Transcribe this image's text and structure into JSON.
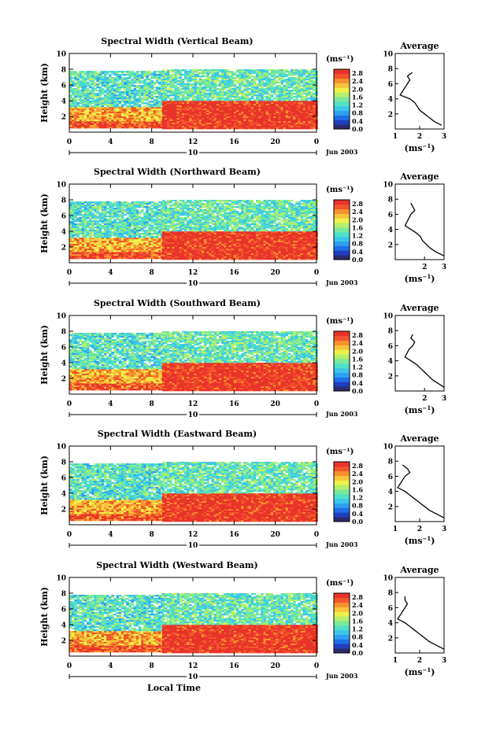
{
  "figure": {
    "xlabel": "Local Time",
    "date_label": "Jun 2003",
    "day_marker": "10",
    "units_label": "(ms⁻¹)",
    "units_base": "(ms",
    "units_exp": "−1",
    "avg_xlabel_base": "(ms",
    "avg_xlabel_exp": "−1",
    "avg_xlabel_close": ")"
  },
  "colorscale": {
    "colors": [
      "#2b2b6b",
      "#1f3fbf",
      "#1e6fe6",
      "#2ea0f0",
      "#3cc6ea",
      "#4fe0c8",
      "#7ae89a",
      "#b5f06a",
      "#eef04a",
      "#f7c43a",
      "#f7902e",
      "#f2562a",
      "#e8332a"
    ],
    "ticks": [
      "0.0",
      "0.4",
      "0.8",
      "1.2",
      "1.6",
      "2.0",
      "2.4",
      "2.8"
    ],
    "range": [
      0.0,
      3.0
    ]
  },
  "chart_data": [
    {
      "type": "heatmap",
      "title": "Spectral Width (Vertical Beam)",
      "ylabel": "Height (km)",
      "xlim": [
        0,
        24
      ],
      "ylim": [
        0,
        10
      ],
      "xticks": [
        "0",
        "4",
        "8",
        "12",
        "16",
        "20",
        "0"
      ],
      "yticks": [
        "2",
        "4",
        "6",
        "8",
        "10"
      ],
      "regimes": [
        {
          "x": [
            0,
            9.0
          ],
          "y": [
            0.5,
            1.5
          ],
          "value": 2.7
        },
        {
          "x": [
            0,
            9.0
          ],
          "y": [
            1.5,
            3.2
          ],
          "value": 2.3
        },
        {
          "x": [
            0,
            9.0
          ],
          "y": [
            3.2,
            7.8
          ],
          "value": 1.3
        },
        {
          "x": [
            9.0,
            24
          ],
          "y": [
            0.5,
            4.0
          ],
          "value": 2.9
        },
        {
          "x": [
            9.0,
            24
          ],
          "y": [
            4.0,
            8.0
          ],
          "value": 1.4
        }
      ],
      "average": {
        "title": "Average",
        "xlim": [
          1,
          3
        ],
        "xticks": [
          "1",
          "2",
          "3"
        ],
        "ylim": [
          0,
          10
        ],
        "yticks": [
          "2",
          "4",
          "6",
          "8",
          "10"
        ],
        "height": [
          0.5,
          1.0,
          1.5,
          2.0,
          2.5,
          3.0,
          3.5,
          4.0,
          4.5,
          5.0,
          5.5,
          6.0,
          6.5,
          7.0,
          7.5
        ],
        "value": [
          2.9,
          2.6,
          2.4,
          2.2,
          2.0,
          1.9,
          1.8,
          1.6,
          1.2,
          1.3,
          1.4,
          1.5,
          1.6,
          1.5,
          1.7
        ]
      }
    },
    {
      "type": "heatmap",
      "title": "Spectral Width (Northward Beam)",
      "ylabel": "Height (km)",
      "xlim": [
        0,
        24
      ],
      "ylim": [
        0,
        10
      ],
      "xticks": [
        "0",
        "4",
        "8",
        "12",
        "16",
        "20",
        "0"
      ],
      "yticks": [
        "2",
        "4",
        "6",
        "8",
        "10"
      ],
      "regimes": [
        {
          "x": [
            0,
            9.0
          ],
          "y": [
            0.5,
            1.5
          ],
          "value": 2.7
        },
        {
          "x": [
            0,
            9.0
          ],
          "y": [
            1.5,
            3.2
          ],
          "value": 2.3
        },
        {
          "x": [
            0,
            9.0
          ],
          "y": [
            3.2,
            7.8
          ],
          "value": 1.3
        },
        {
          "x": [
            9.0,
            24
          ],
          "y": [
            0.5,
            4.0
          ],
          "value": 2.9
        },
        {
          "x": [
            9.0,
            24
          ],
          "y": [
            4.0,
            8.0
          ],
          "value": 1.4
        }
      ],
      "average": {
        "title": "Average",
        "xlim": [
          0.5,
          3
        ],
        "xticks": [
          "2",
          "3"
        ],
        "ylim": [
          0,
          10
        ],
        "yticks": [
          "2",
          "4",
          "6",
          "8",
          "10"
        ],
        "height": [
          0.5,
          1.0,
          1.5,
          2.0,
          2.5,
          3.0,
          3.5,
          4.0,
          4.5,
          5.0,
          5.5,
          6.0,
          6.5,
          7.0,
          7.5
        ],
        "value": [
          3.0,
          2.6,
          2.3,
          2.1,
          1.9,
          1.8,
          1.6,
          1.3,
          1.0,
          1.1,
          1.2,
          1.3,
          1.5,
          1.4,
          1.3
        ]
      }
    },
    {
      "type": "heatmap",
      "title": "Spectral Width (Southward Beam)",
      "ylabel": "Height (km)",
      "xlim": [
        0,
        24
      ],
      "ylim": [
        0,
        10
      ],
      "xticks": [
        "0",
        "4",
        "8",
        "12",
        "16",
        "20",
        "0"
      ],
      "yticks": [
        "2",
        "4",
        "6",
        "8",
        "10"
      ],
      "regimes": [
        {
          "x": [
            0,
            9.0
          ],
          "y": [
            0.5,
            1.5
          ],
          "value": 2.7
        },
        {
          "x": [
            0,
            9.0
          ],
          "y": [
            1.5,
            3.2
          ],
          "value": 2.3
        },
        {
          "x": [
            0,
            9.0
          ],
          "y": [
            3.2,
            7.8
          ],
          "value": 1.3
        },
        {
          "x": [
            9.0,
            24
          ],
          "y": [
            0.5,
            4.0
          ],
          "value": 2.9
        },
        {
          "x": [
            9.0,
            24
          ],
          "y": [
            4.0,
            8.0
          ],
          "value": 1.4
        }
      ],
      "average": {
        "title": "Average",
        "xlim": [
          0.5,
          3
        ],
        "xticks": [
          "2",
          "3"
        ],
        "ylim": [
          0,
          10
        ],
        "yticks": [
          "2",
          "4",
          "6",
          "8",
          "10"
        ],
        "height": [
          0.5,
          1.0,
          1.5,
          2.0,
          2.5,
          3.0,
          3.5,
          4.0,
          4.5,
          5.0,
          5.5,
          6.0,
          6.5,
          7.0,
          7.5
        ],
        "value": [
          3.0,
          2.7,
          2.4,
          2.2,
          2.0,
          1.8,
          1.6,
          1.3,
          1.0,
          1.1,
          1.2,
          1.4,
          1.5,
          1.3,
          1.4
        ]
      }
    },
    {
      "type": "heatmap",
      "title": "Spectral Width (Eastward Beam)",
      "ylabel": "Height (km)",
      "xlim": [
        0,
        24
      ],
      "ylim": [
        0,
        10
      ],
      "xticks": [
        "0",
        "4",
        "8",
        "12",
        "16",
        "20",
        "0"
      ],
      "yticks": [
        "2",
        "4",
        "6",
        "8",
        "10"
      ],
      "regimes": [
        {
          "x": [
            0,
            9.0
          ],
          "y": [
            0.5,
            1.5
          ],
          "value": 2.7
        },
        {
          "x": [
            0,
            9.0
          ],
          "y": [
            1.5,
            3.2
          ],
          "value": 2.3
        },
        {
          "x": [
            0,
            9.0
          ],
          "y": [
            3.2,
            7.8
          ],
          "value": 1.3
        },
        {
          "x": [
            9.0,
            24
          ],
          "y": [
            0.5,
            4.0
          ],
          "value": 2.9
        },
        {
          "x": [
            9.0,
            24
          ],
          "y": [
            4.0,
            8.0
          ],
          "value": 1.4
        }
      ],
      "average": {
        "title": "Average",
        "xlim": [
          1,
          3
        ],
        "xticks": [
          "1",
          "2",
          "3"
        ],
        "ylim": [
          0,
          10
        ],
        "yticks": [
          "2",
          "4",
          "6",
          "8",
          "10"
        ],
        "height": [
          0.5,
          1.0,
          1.5,
          2.0,
          2.5,
          3.0,
          3.5,
          4.0,
          4.5,
          5.0,
          5.5,
          6.0,
          6.5,
          7.0,
          7.5
        ],
        "value": [
          3.0,
          2.7,
          2.4,
          2.2,
          2.0,
          1.8,
          1.6,
          1.4,
          1.1,
          1.2,
          1.3,
          1.4,
          1.6,
          1.5,
          1.3
        ]
      }
    },
    {
      "type": "heatmap",
      "title": "Spectral Width (Westward Beam)",
      "ylabel": "Height (km)",
      "xlim": [
        0,
        24
      ],
      "ylim": [
        0,
        10
      ],
      "xticks": [
        "0",
        "4",
        "8",
        "12",
        "16",
        "20",
        "0"
      ],
      "yticks": [
        "2",
        "4",
        "6",
        "8",
        "10"
      ],
      "regimes": [
        {
          "x": [
            0,
            9.0
          ],
          "y": [
            0.5,
            1.5
          ],
          "value": 2.7
        },
        {
          "x": [
            0,
            9.0
          ],
          "y": [
            1.5,
            3.2
          ],
          "value": 2.3
        },
        {
          "x": [
            0,
            9.0
          ],
          "y": [
            3.2,
            7.8
          ],
          "value": 1.3
        },
        {
          "x": [
            9.0,
            24
          ],
          "y": [
            0.5,
            4.0
          ],
          "value": 2.9
        },
        {
          "x": [
            9.0,
            24
          ],
          "y": [
            4.0,
            8.0
          ],
          "value": 1.4
        }
      ],
      "average": {
        "title": "Average",
        "xlim": [
          1,
          3
        ],
        "xticks": [
          "1",
          "2",
          "3"
        ],
        "ylim": [
          0,
          10
        ],
        "yticks": [
          "2",
          "4",
          "6",
          "8",
          "10"
        ],
        "height": [
          0.5,
          1.0,
          1.5,
          2.0,
          2.5,
          3.0,
          3.5,
          4.0,
          4.5,
          5.0,
          5.5,
          6.0,
          6.5,
          7.0,
          7.5
        ],
        "value": [
          3.0,
          2.7,
          2.4,
          2.2,
          2.0,
          1.8,
          1.6,
          1.4,
          1.1,
          1.2,
          1.3,
          1.4,
          1.5,
          1.4,
          1.4
        ]
      }
    }
  ]
}
